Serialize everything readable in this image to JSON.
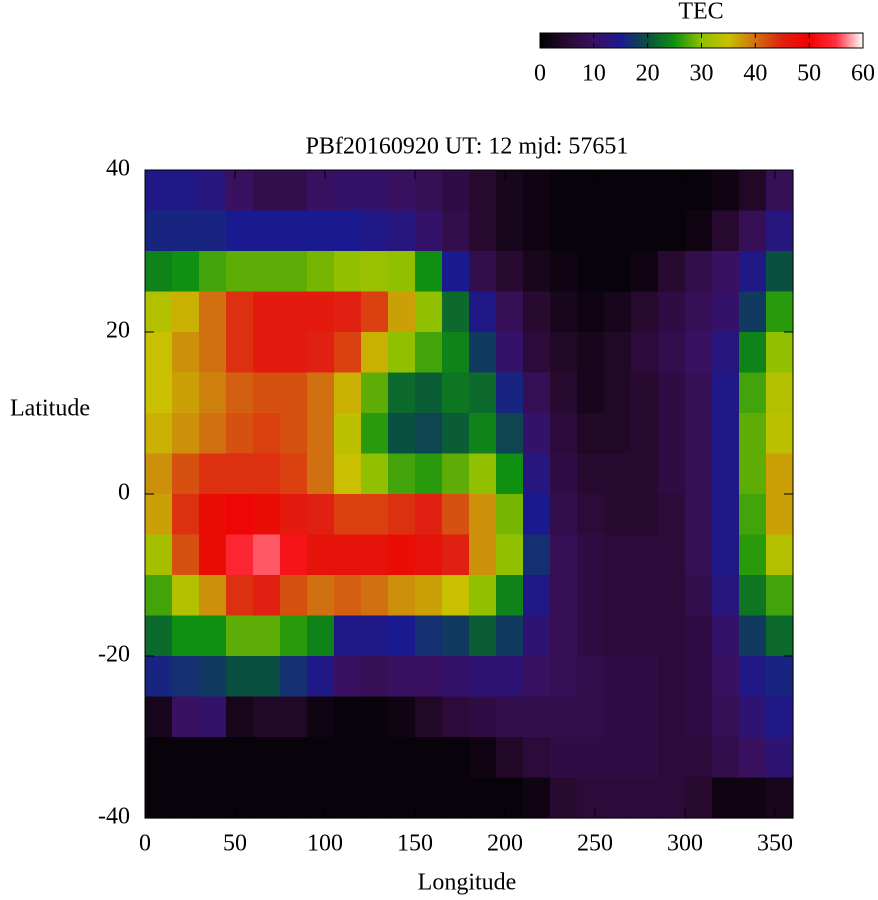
{
  "chart_data": {
    "type": "heatmap",
    "title": "PBf20160920  UT: 12  mjd: 57651",
    "xlabel": "Longitude",
    "ylabel": "Latitude",
    "colorbar_label": "TEC",
    "x": [
      7.5,
      22.5,
      37.5,
      52.5,
      67.5,
      82.5,
      97.5,
      112.5,
      127.5,
      142.5,
      157.5,
      172.5,
      187.5,
      202.5,
      217.5,
      232.5,
      247.5,
      262.5,
      277.5,
      292.5,
      307.5,
      322.5,
      337.5,
      352.5
    ],
    "y": [
      37.5,
      32.5,
      27.5,
      22.5,
      17.5,
      12.5,
      7.5,
      2.5,
      -2.5,
      -7.5,
      -12.5,
      -17.5,
      -22.5,
      -27.5,
      -32.5,
      -37.5
    ],
    "z": [
      [
        14,
        14,
        13,
        10,
        8,
        8,
        10,
        11,
        11,
        10,
        9,
        7,
        5,
        3,
        2,
        1,
        1,
        1,
        1,
        1,
        1,
        2,
        4,
        9
      ],
      [
        16,
        16,
        16,
        15,
        15,
        15,
        15,
        15,
        14,
        13,
        11,
        8,
        5,
        3,
        2,
        1,
        1,
        1,
        1,
        1,
        2,
        5,
        9,
        13
      ],
      [
        24,
        25,
        27,
        28,
        28,
        28,
        29,
        30,
        31,
        30,
        25,
        15,
        8,
        5,
        3,
        2,
        1,
        1,
        2,
        5,
        8,
        10,
        14,
        20
      ],
      [
        33,
        36,
        40,
        44,
        46,
        46,
        46,
        45,
        43,
        37,
        30,
        22,
        14,
        9,
        5,
        3,
        2,
        3,
        5,
        7,
        9,
        11,
        18,
        26
      ],
      [
        35,
        38,
        40,
        44,
        46,
        46,
        45,
        43,
        36,
        30,
        27,
        24,
        18,
        11,
        6,
        4,
        3,
        4,
        6,
        8,
        10,
        13,
        24,
        30
      ],
      [
        35,
        37,
        39,
        41,
        42,
        42,
        40,
        36,
        28,
        22,
        21,
        23,
        22,
        16,
        9,
        5,
        3,
        4,
        5,
        7,
        9,
        14,
        27,
        33
      ],
      [
        36,
        38,
        40,
        42,
        43,
        42,
        40,
        34,
        26,
        20,
        19,
        21,
        24,
        19,
        11,
        6,
        4,
        4,
        5,
        7,
        9,
        14,
        28,
        34
      ],
      [
        38,
        42,
        44,
        44,
        44,
        43,
        40,
        35,
        30,
        27,
        26,
        28,
        30,
        25,
        13,
        7,
        5,
        5,
        5,
        7,
        9,
        14,
        28,
        37
      ],
      [
        37,
        44,
        48,
        49,
        48,
        46,
        45,
        43,
        43,
        44,
        45,
        42,
        38,
        29,
        15,
        8,
        6,
        5,
        5,
        6,
        9,
        14,
        27,
        37
      ],
      [
        32,
        42,
        48,
        54,
        56,
        52,
        47,
        47,
        47,
        48,
        47,
        45,
        38,
        30,
        17,
        9,
        7,
        6,
        6,
        6,
        9,
        14,
        26,
        33
      ],
      [
        27,
        33,
        38,
        44,
        45,
        42,
        40,
        41,
        40,
        38,
        37,
        35,
        30,
        24,
        14,
        9,
        7,
        6,
        6,
        6,
        8,
        13,
        23,
        27
      ],
      [
        22,
        25,
        25,
        28,
        28,
        26,
        24,
        14,
        14,
        15,
        17,
        18,
        21,
        18,
        12,
        9,
        7,
        6,
        6,
        6,
        7,
        11,
        18,
        22
      ],
      [
        16,
        17,
        18,
        20,
        20,
        17,
        14,
        10,
        9,
        10,
        10,
        11,
        12,
        12,
        10,
        9,
        8,
        7,
        7,
        6,
        7,
        10,
        14,
        16
      ],
      [
        3,
        10,
        11,
        3,
        4,
        4,
        2,
        1,
        1,
        2,
        4,
        6,
        7,
        8,
        8,
        8,
        8,
        7,
        7,
        6,
        7,
        9,
        12,
        14
      ],
      [
        1,
        1,
        1,
        1,
        1,
        1,
        1,
        1,
        1,
        1,
        1,
        1,
        2,
        4,
        6,
        7,
        7,
        7,
        7,
        6,
        6,
        8,
        10,
        12
      ],
      [
        1,
        1,
        1,
        1,
        1,
        1,
        1,
        1,
        1,
        1,
        1,
        1,
        1,
        1,
        2,
        5,
        6,
        6,
        6,
        6,
        5,
        2,
        2,
        3
      ]
    ],
    "xlim": [
      0,
      360
    ],
    "xticks": [
      0,
      50,
      100,
      150,
      200,
      250,
      300,
      350
    ],
    "ylim": [
      -40,
      40
    ],
    "yticks": [
      -40,
      -20,
      0,
      20,
      40
    ],
    "clim": [
      0,
      60
    ],
    "cticks": [
      0,
      10,
      20,
      30,
      40,
      50,
      60
    ],
    "colormap": [
      "#000000",
      "#280a30",
      "#3a1060",
      "#1a1a90",
      "#0a5040",
      "#109010",
      "#90c000",
      "#c8c000",
      "#d07010",
      "#e02010",
      "#f00000",
      "#ff3040",
      "#ffffff"
    ]
  }
}
